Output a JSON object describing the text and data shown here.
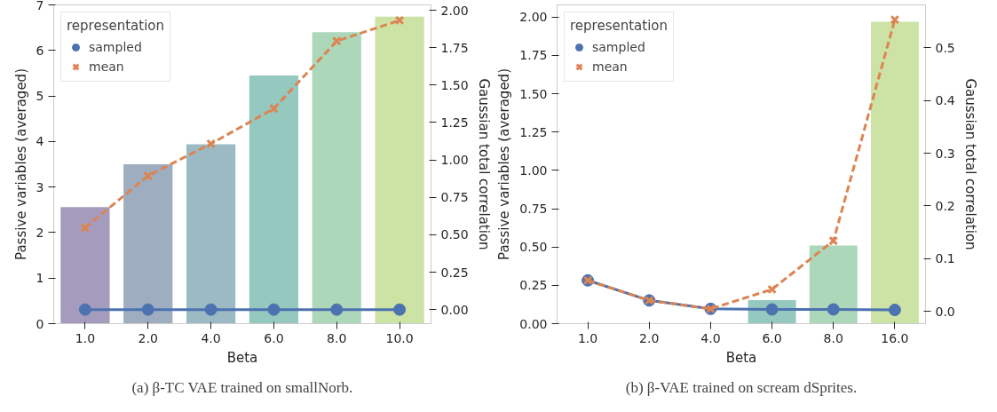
{
  "chart_data": [
    {
      "type": "bar",
      "categories": [
        "1.0",
        "2.0",
        "4.0",
        "6.0",
        "8.0",
        "10.0"
      ],
      "values": [
        2.56,
        3.5,
        3.94,
        5.45,
        6.4,
        6.74
      ],
      "colors": [
        "#a59cbd",
        "#9eadbf",
        "#9bbac3",
        "#95c8bf",
        "#acd7b9",
        "#cce3a5"
      ],
      "xlabel": "Beta",
      "ylabel": "Passive variables (averaged)",
      "y2label": "Gaussian total correlation",
      "legend_title": "representation",
      "legend": "top left",
      "grid": false,
      "ylim": [
        0,
        7
      ],
      "yticks": [
        0,
        1,
        2,
        3,
        4,
        5,
        6,
        7
      ],
      "y2lim": [
        -0.094,
        2.036
      ],
      "y2ticks": [
        {
          "value": 0,
          "label": "0.00"
        },
        {
          "value": 0.25,
          "label": "0.25"
        },
        {
          "value": 0.5,
          "label": "0.50"
        },
        {
          "value": 0.75,
          "label": "0.75"
        },
        {
          "value": 1,
          "label": "1.00"
        },
        {
          "value": 1.25,
          "label": "1.25"
        },
        {
          "value": 1.5,
          "label": "1.50"
        },
        {
          "value": 1.75,
          "label": "1.75"
        },
        {
          "value": 2,
          "label": "2.00"
        }
      ],
      "series": [
        {
          "name": "sampled",
          "type": "line",
          "axis": "y2",
          "marker": "circle",
          "line_style": "solid",
          "color": "#4c72b0",
          "values": [
            0,
            0,
            0,
            0,
            0,
            0
          ]
        },
        {
          "name": "mean",
          "type": "line",
          "axis": "y2",
          "marker": "cross",
          "line_style": "dashed",
          "color": "#dd8452",
          "values": [
            0.547,
            0.894,
            1.108,
            1.343,
            1.794,
            1.933
          ]
        }
      ],
      "annotations": [
        "(a) β-TC VAE trained on smallNorb."
      ]
    },
    {
      "type": "bar",
      "categories": [
        "1.0",
        "2.0",
        "4.0",
        "6.0",
        "8.0",
        "16.0"
      ],
      "values": [
        0,
        0,
        0,
        0.153,
        0.51,
        1.97
      ],
      "colors": [
        "#a59cbd",
        "#9eadbf",
        "#9bbac3",
        "#95c8bf",
        "#acd7b9",
        "#cce3a5"
      ],
      "xlabel": "Beta",
      "ylabel": "Passive variables (averaged)",
      "y2label": "Gaussian total correlation",
      "legend_title": "representation",
      "legend": "top left",
      "grid": false,
      "ylim": [
        0,
        2.08
      ],
      "yticks": [
        {
          "value": 0,
          "label": "0.00"
        },
        {
          "value": 0.25,
          "label": "0.25"
        },
        {
          "value": 0.5,
          "label": "0.50"
        },
        {
          "value": 0.75,
          "label": "0.75"
        },
        {
          "value": 1,
          "label": "1.00"
        },
        {
          "value": 1.25,
          "label": "1.25"
        },
        {
          "value": 1.5,
          "label": "1.50"
        },
        {
          "value": 1.75,
          "label": "1.75"
        },
        {
          "value": 2,
          "label": "2.00"
        }
      ],
      "y2lim": [
        -0.023,
        0.581
      ],
      "y2ticks": [
        {
          "value": 0,
          "label": "0.0"
        },
        0.1,
        0.2,
        0.3,
        0.4,
        0.5
      ],
      "series": [
        {
          "name": "sampled",
          "type": "line",
          "axis": "y2",
          "marker": "circle",
          "line_style": "solid",
          "color": "#4c72b0",
          "values": [
            0.059,
            0.021,
            0.005,
            0.004,
            0.004,
            0.003
          ]
        },
        {
          "name": "mean",
          "type": "line",
          "axis": "y2",
          "marker": "cross",
          "line_style": "dashed",
          "color": "#dd8452",
          "values": [
            0.059,
            0.021,
            0.005,
            0.042,
            0.134,
            0.553
          ]
        }
      ],
      "annotations": [
        "(b) β-VAE trained on scream dSprites."
      ]
    }
  ]
}
